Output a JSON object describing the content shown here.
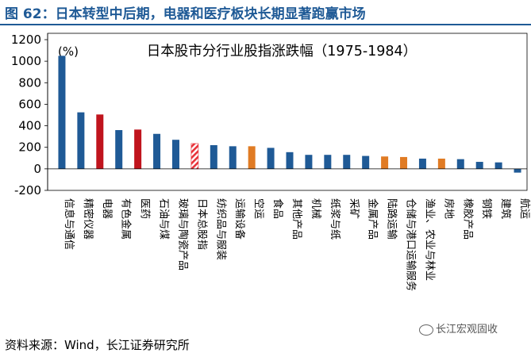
{
  "figure": {
    "title": "图 62：日本转型中后期，电器和医疗板块长期显著跑赢市场",
    "source": "资料来源：Wind，长江证券研究所",
    "watermark": "长江宏观固收"
  },
  "colors": {
    "blue": "#1f5a96",
    "red": "#c0141d",
    "orange": "#e07b24",
    "hatched": "#e8333a"
  },
  "chart_data": {
    "type": "bar",
    "title": "日本股市分行业股指涨跌幅（1975-1984）",
    "ylabel": "(%)",
    "xlabel": "",
    "ylim": [
      -200,
      1200
    ],
    "yticks": [
      -200,
      0,
      200,
      400,
      600,
      800,
      1000,
      1200
    ],
    "grid": false,
    "categories": [
      "信息与通信",
      "精密仪器",
      "电器",
      "有色金属",
      "医药",
      "石油与煤",
      "玻璃与陶瓷产品",
      "日本总股指",
      "纺织品与服装",
      "运输设备",
      "空运",
      "食品",
      "其他产品",
      "机械",
      "纸浆与纸",
      "采矿",
      "金属产品",
      "陆路运输",
      "仓储与港口运输服务",
      "渔业、农业与林业",
      "房地",
      "橡胶产品",
      "钢铁",
      "建筑",
      "航运"
    ],
    "values": [
      1050,
      525,
      505,
      360,
      365,
      325,
      270,
      235,
      220,
      210,
      210,
      195,
      155,
      130,
      130,
      130,
      120,
      115,
      110,
      95,
      95,
      90,
      65,
      60,
      -35
    ],
    "bar_colors": [
      "blue",
      "blue",
      "red",
      "blue",
      "red",
      "blue",
      "blue",
      "hatched",
      "blue",
      "blue",
      "orange",
      "blue",
      "blue",
      "blue",
      "blue",
      "blue",
      "blue",
      "orange",
      "orange",
      "blue",
      "orange",
      "blue",
      "blue",
      "blue",
      "blue"
    ]
  }
}
